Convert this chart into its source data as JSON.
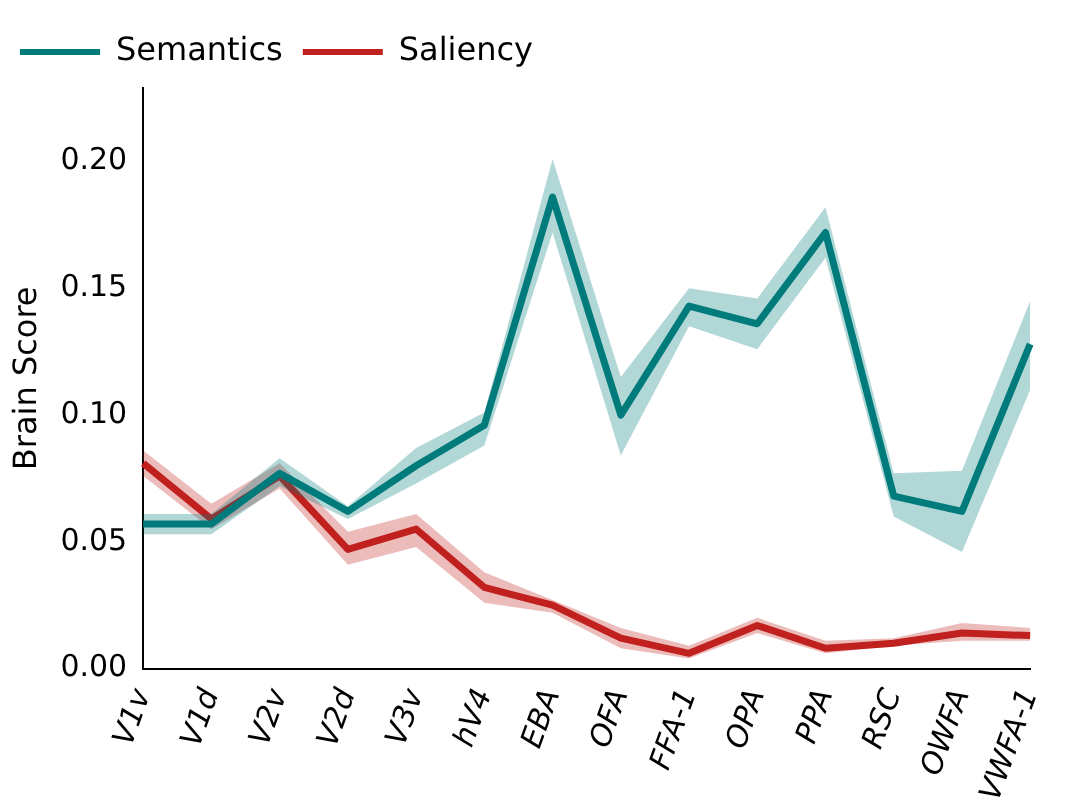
{
  "chart_data": {
    "type": "line",
    "ylabel": "Brain Score",
    "categories": [
      "V1v",
      "V1d",
      "V2v",
      "V2d",
      "V3v",
      "hV4",
      "EBA",
      "OFA",
      "FFA-1",
      "OPA",
      "PPA",
      "RSC",
      "OWFA",
      "VWFA-1"
    ],
    "series": [
      {
        "name": "Semantics",
        "color": "#007b7b",
        "values": [
          0.057,
          0.057,
          0.077,
          0.062,
          0.08,
          0.096,
          0.186,
          0.1,
          0.143,
          0.136,
          0.172,
          0.068,
          0.062,
          0.128
        ],
        "lower": [
          0.053,
          0.053,
          0.072,
          0.059,
          0.073,
          0.088,
          0.172,
          0.084,
          0.135,
          0.126,
          0.162,
          0.06,
          0.046,
          0.11
        ],
        "upper": [
          0.061,
          0.061,
          0.083,
          0.064,
          0.087,
          0.101,
          0.201,
          0.115,
          0.15,
          0.146,
          0.182,
          0.077,
          0.078,
          0.145
        ]
      },
      {
        "name": "Saliency",
        "color": "#c0201f",
        "values": [
          0.081,
          0.059,
          0.076,
          0.047,
          0.055,
          0.032,
          0.025,
          0.012,
          0.006,
          0.017,
          0.008,
          0.01,
          0.014,
          0.013
        ],
        "lower": [
          0.076,
          0.055,
          0.071,
          0.041,
          0.048,
          0.026,
          0.022,
          0.008,
          0.004,
          0.014,
          0.006,
          0.009,
          0.011,
          0.011
        ],
        "upper": [
          0.086,
          0.065,
          0.081,
          0.054,
          0.061,
          0.038,
          0.027,
          0.016,
          0.009,
          0.02,
          0.011,
          0.012,
          0.018,
          0.016
        ]
      }
    ],
    "ylim": [
      0,
      0.229
    ],
    "yticks": [
      {
        "value": 0,
        "label": "0.00"
      },
      {
        "value": 0.05,
        "label": "0.05"
      },
      {
        "value": 0.1,
        "label": "0.10"
      },
      {
        "value": 0.15,
        "label": "0.15"
      },
      {
        "value": 0.2,
        "label": "0.20"
      }
    ],
    "grid": false,
    "legend": "top left",
    "marker": "none",
    "line_style": "solid"
  }
}
